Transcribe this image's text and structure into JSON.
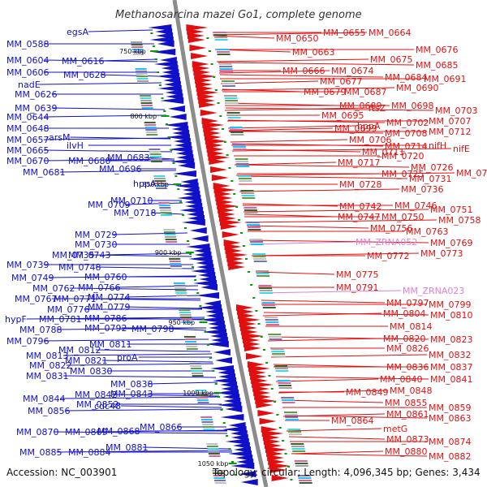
{
  "title": "Methanosarcina mazei Go1, complete genome",
  "footer": {
    "accession": "Accession: NC_003901",
    "summary": "Topology: circular; Length: 4,096,345 bp; Genes: 3,434"
  },
  "colors": {
    "reverse_strand": "#1010c8",
    "forward_strand": "#e01010",
    "rna": "#e080d0",
    "backbone": "#8c8c8c",
    "tick": "#00a000",
    "background": "#ffffff"
  },
  "ticks": [
    {
      "label": "750 kbp"
    },
    {
      "label": "800 kbp"
    },
    {
      "label": "850 kbp"
    },
    {
      "label": "900 kbp"
    },
    {
      "label": "950 kbp"
    },
    {
      "label": "1000 kbp"
    },
    {
      "label": "1050 kbp"
    }
  ],
  "left_labels": [
    "egsA",
    "MM_0588",
    "MM_0604",
    "MM_0616",
    "MM_0606",
    "MM_0628",
    "nadE",
    "MM_0626",
    "MM_0639",
    "MM_0644",
    "MM_0648",
    "arsM",
    "MM_0657",
    "ilvH",
    "MM_0665",
    "MM_0670",
    "MM_0680",
    "MM_0683",
    "MM_0681",
    "MM_0696",
    "hppA",
    "MM_0709",
    "MM_0710",
    "MM_0718",
    "MM_0729",
    "MM_0730",
    "MM_0735",
    "MM_0743",
    "MM_0739",
    "MM_0748",
    "MM_0749",
    "MM_0760",
    "MM_0762",
    "MM_0766",
    "MM_0767",
    "MM_0771",
    "MM_0774",
    "MM_0776",
    "MM_0779",
    "hypF",
    "MM_0781",
    "MM_0786",
    "MM_0788",
    "MM_0792",
    "MM_0798",
    "MM_0796",
    "MM_0811",
    "MM_0812",
    "MM_0813",
    "proA",
    "MM_0821",
    "MM_0822",
    "MM_0830",
    "MM_0831",
    "MM_0838",
    "MM_0843",
    "MM_0842",
    "MM_0844",
    "MM_0852",
    "cdc48",
    "MM_0856",
    "MM_0866",
    "MM_0870",
    "MM_0869",
    "MM_0868",
    "MM_0881",
    "MM_0885",
    "MM_0884"
  ],
  "right_labels": [
    "MM_0650",
    "MM_0655",
    "MM_0664",
    "MM_0663",
    "MM_0676",
    "MM_0675",
    "MM_0685",
    "MM_0666",
    "MM_0674",
    "MM_0684",
    "MM_0691",
    "MM_0677",
    "MM_0679",
    "MM_0687",
    "MM_0690",
    "MM_0689",
    "MM_0698",
    "ftsZ",
    "MM_0703",
    "MM_0695",
    "hppA",
    "MM_0702",
    "MM_0707",
    "MM_0699",
    "MM_0708",
    "MM_0712",
    "MM_0706",
    "MM_0714",
    "nifH",
    "nifE",
    "MM_0711",
    "MM_0720",
    "MM_0717",
    "MM_0726",
    "MM_0725",
    "MM_0734",
    "MM_0731",
    "MM_0728",
    "MM_0736",
    "MM_0742",
    "MM_0746",
    "MM_0751",
    "MM_0747",
    "MM_0750",
    "MM_0758",
    "MM_0756",
    "MM_0763",
    "MM_ZRNA052",
    "MM_0769",
    "MM_0772",
    "MM_0773",
    "MM_0775",
    "MM_0791",
    "MM_ZRNA023",
    "MM_0797",
    "MM_0799",
    "MM_0804",
    "MM_0810",
    "MM_0814",
    "MM_0820",
    "MM_0823",
    "MM_0826",
    "MM_0832",
    "MM_0836",
    "MM_0837",
    "MM_0840",
    "MM_0841",
    "MM_0849",
    "MM_0848",
    "MM_0855",
    "MM_0859",
    "MM_0861",
    "MM_0863",
    "MM_0864",
    "metG",
    "MM_0873",
    "MM_0874",
    "MM_0880",
    "MM_0882"
  ]
}
